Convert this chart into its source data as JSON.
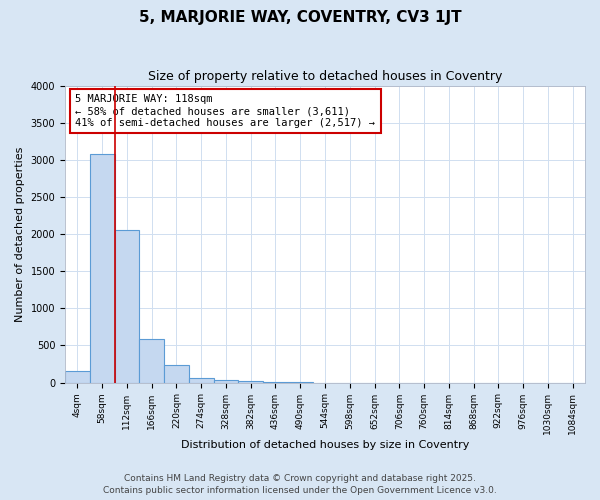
{
  "title": "5, MARJORIE WAY, COVENTRY, CV3 1JT",
  "subtitle": "Size of property relative to detached houses in Coventry",
  "xlabel": "Distribution of detached houses by size in Coventry",
  "ylabel": "Number of detached properties",
  "bins": [
    "4sqm",
    "58sqm",
    "112sqm",
    "166sqm",
    "220sqm",
    "274sqm",
    "328sqm",
    "382sqm",
    "436sqm",
    "490sqm",
    "544sqm",
    "598sqm",
    "652sqm",
    "706sqm",
    "760sqm",
    "814sqm",
    "868sqm",
    "922sqm",
    "976sqm",
    "1030sqm",
    "1084sqm"
  ],
  "values": [
    150,
    3080,
    2060,
    590,
    240,
    65,
    40,
    15,
    5,
    2,
    1,
    0,
    0,
    0,
    0,
    0,
    0,
    0,
    0,
    0,
    0
  ],
  "bar_color": "#c5d8f0",
  "bar_edge_color": "#5b9bd5",
  "red_line_x": 1.5,
  "annotation_text_line1": "5 MARJORIE WAY: 118sqm",
  "annotation_text_line2": "← 58% of detached houses are smaller (3,611)",
  "annotation_text_line3": "41% of semi-detached houses are larger (2,517) →",
  "annotation_box_color": "#ffffff",
  "annotation_box_edge_color": "#cc0000",
  "ylim": [
    0,
    4000
  ],
  "yticks": [
    0,
    500,
    1000,
    1500,
    2000,
    2500,
    3000,
    3500,
    4000
  ],
  "grid_color": "#d0dff0",
  "background_color": "#d8e6f4",
  "plot_bg_color": "#ffffff",
  "footer_line1": "Contains HM Land Registry data © Crown copyright and database right 2025.",
  "footer_line2": "Contains public sector information licensed under the Open Government Licence v3.0.",
  "title_fontsize": 11,
  "subtitle_fontsize": 9,
  "axis_label_fontsize": 8,
  "tick_fontsize": 6.5,
  "annotation_fontsize": 7.5,
  "footer_fontsize": 6.5
}
